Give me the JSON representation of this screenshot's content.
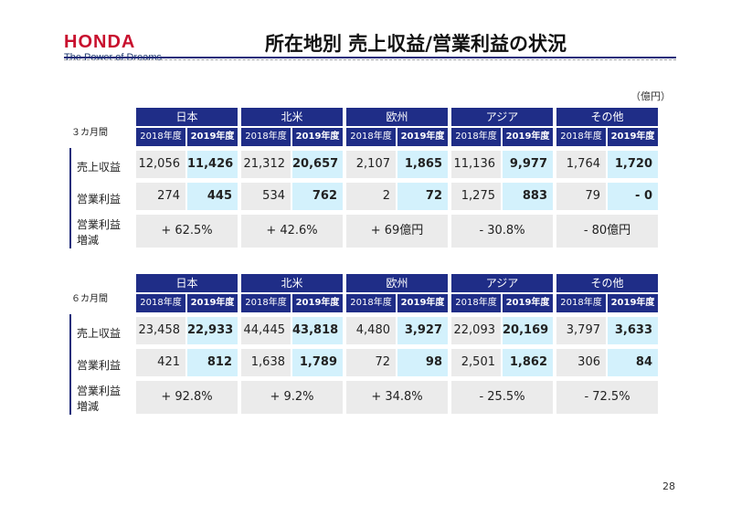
{
  "header": {
    "logo_text": "HONDA",
    "tagline": "The Power of Dreams",
    "title": "所在地別 売上収益/営業利益の状況"
  },
  "unit": "（億円）",
  "page_number": "28",
  "colors": {
    "header_blue": "#1f2d87",
    "cell_grey": "#ebebeb",
    "cell_light_blue": "#d3f1fc",
    "brand_red": "#c8102e"
  },
  "regions": [
    "日本",
    "北米",
    "欧州",
    "アジア",
    "その他"
  ],
  "years": [
    "2018年度",
    "2019年度"
  ],
  "row_labels": {
    "revenue": "売上収益",
    "op_income": "営業利益",
    "growth_line1": "営業利益",
    "growth_line2": "増減"
  },
  "sections": [
    {
      "label": "３カ月間",
      "revenue": [
        [
          "12,056",
          "11,426"
        ],
        [
          "21,312",
          "20,657"
        ],
        [
          "2,107",
          "1,865"
        ],
        [
          "11,136",
          "9,977"
        ],
        [
          "1,764",
          "1,720"
        ]
      ],
      "op_income": [
        [
          "274",
          "445"
        ],
        [
          "534",
          "762"
        ],
        [
          "2",
          "72"
        ],
        [
          "1,275",
          "883"
        ],
        [
          "79",
          "- 0"
        ]
      ],
      "growth": [
        "+ 62.5%",
        "+ 42.6%",
        "+ 69億円",
        "- 30.8%",
        "- 80億円"
      ]
    },
    {
      "label": "６カ月間",
      "revenue": [
        [
          "23,458",
          "22,933"
        ],
        [
          "44,445",
          "43,818"
        ],
        [
          "4,480",
          "3,927"
        ],
        [
          "22,093",
          "20,169"
        ],
        [
          "3,797",
          "3,633"
        ]
      ],
      "op_income": [
        [
          "421",
          "812"
        ],
        [
          "1,638",
          "1,789"
        ],
        [
          "72",
          "98"
        ],
        [
          "2,501",
          "1,862"
        ],
        [
          "306",
          "84"
        ]
      ],
      "growth": [
        "+ 92.8%",
        "+ 9.2%",
        "+ 34.8%",
        "- 25.5%",
        "- 72.5%"
      ]
    }
  ]
}
